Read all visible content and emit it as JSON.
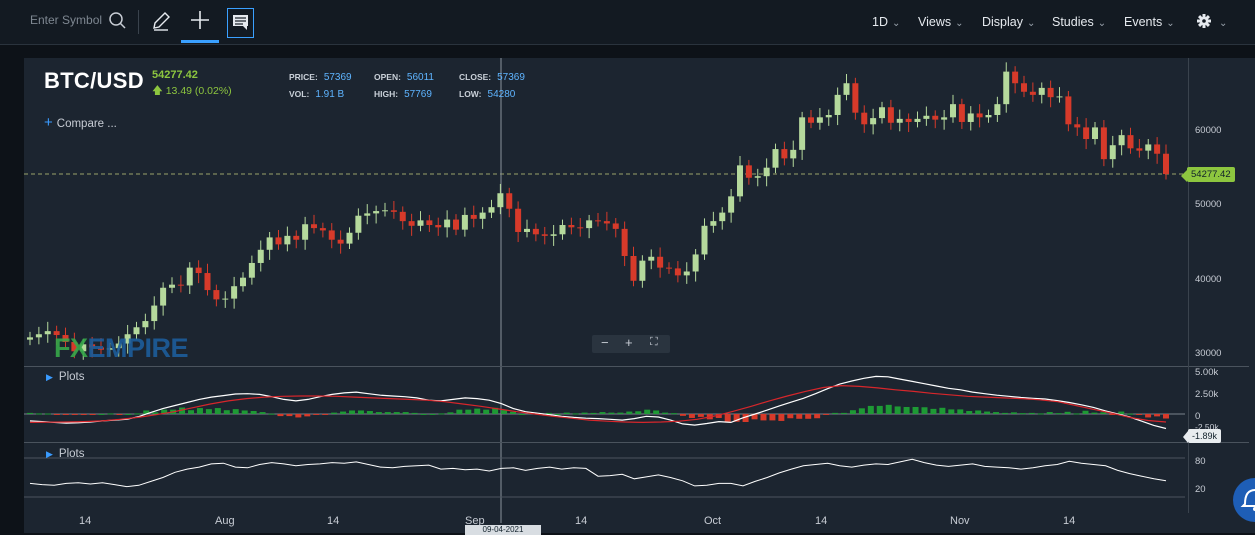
{
  "toolbar": {
    "search_placeholder": "Enter Symbol",
    "menus": [
      "1D",
      "Views",
      "Display",
      "Studies",
      "Events"
    ]
  },
  "header": {
    "symbol": "BTC/USD",
    "last_price": "54277.42",
    "change": "13.49 (0.02%)",
    "price_label": "PRICE:",
    "price": "57369",
    "open_label": "OPEN:",
    "open": "56011",
    "close_label": "CLOSE:",
    "close": "57369",
    "vol_label": "VOL:",
    "vol": "1.91 B",
    "high_label": "HIGH:",
    "high": "57769",
    "low_label": "LOW:",
    "low": "54280",
    "compare_label": "Compare ..."
  },
  "watermark": {
    "fx": "FX",
    "rest": "EMPIRE"
  },
  "panes": {
    "plots1": "Plots",
    "plots2": "Plots"
  },
  "tags": {
    "price": "54277.42",
    "osc": "-1.89k",
    "crosshair_date": "09-04-2021"
  },
  "colors": {
    "up": "#b5d99c",
    "down": "#d73a2a",
    "accent": "#3a9bff",
    "signal": "#d7262b",
    "bull_hist": "#1e9a35"
  },
  "chart_data": {
    "type": "candlestick",
    "symbol": "BTC/USD",
    "price_axis": {
      "ticks": [
        30000,
        40000,
        50000,
        60000
      ],
      "labels": [
        "30000",
        "40000",
        "50000",
        "60000"
      ],
      "range": [
        29500,
        69000
      ]
    },
    "x_axis": {
      "labels": [
        "14",
        "Aug",
        "14",
        "Sep",
        "14",
        "Oct",
        "14",
        "Nov",
        "14"
      ]
    },
    "osc_axis": {
      "labels": [
        "5.00k",
        "2.50k",
        "0",
        "-2.50k"
      ],
      "values": [
        5000,
        2500,
        0,
        -2500
      ],
      "range": [
        -3400,
        6000
      ]
    },
    "rsi_axis": {
      "labels": [
        "80",
        "20"
      ],
      "values": [
        80,
        20
      ],
      "range": [
        0,
        100
      ]
    },
    "close_series": [
      33200,
      33600,
      34000,
      33500,
      32600,
      31400,
      32300,
      31900,
      31600,
      31800,
      32400,
      33600,
      34500,
      35300,
      37300,
      39600,
      40000,
      39900,
      42200,
      41500,
      39300,
      38100,
      38200,
      39800,
      40900,
      42800,
      44500,
      46100,
      45200,
      46300,
      45800,
      47800,
      47300,
      47000,
      45800,
      45300,
      46700,
      48900,
      49200,
      49500,
      49600,
      49400,
      48200,
      47600,
      48300,
      47700,
      47400,
      48400,
      47100,
      49000,
      48500,
      49300,
      50000,
      51800,
      49800,
      46800,
      47200,
      46500,
      46300,
      46500,
      47700,
      47400,
      47300,
      48300,
      48200,
      47900,
      47200,
      43700,
      40500,
      43100,
      43600,
      42200,
      42100,
      41200,
      41700,
      43900,
      47600,
      48200,
      49300,
      51400,
      55400,
      53800,
      54000,
      55100,
      57500,
      56300,
      57400,
      61600,
      60900,
      61600,
      61900,
      64500,
      66000,
      62200,
      60700,
      61500,
      62900,
      60900,
      61400,
      61000,
      61400,
      61800,
      61300,
      61600,
      63300,
      61000,
      62100,
      61600,
      61900,
      63300,
      67500,
      66000,
      64900,
      64500,
      65400,
      64200,
      64300,
      60700,
      60300,
      58800,
      60300,
      56200,
      58000,
      59300,
      57600,
      57300,
      58100,
      56900,
      54277
    ],
    "oscillator_line": [
      -900,
      -1000,
      -1100,
      -1200,
      -1150,
      -1050,
      -900,
      -800,
      -700,
      -350,
      200,
      700,
      1100,
      1500,
      1900,
      2200,
      2400,
      2600,
      2650,
      2550,
      2250,
      1900,
      1700,
      1900,
      2250,
      2550,
      2750,
      2850,
      2650,
      2450,
      2350,
      2250,
      2100,
      1800,
      1700,
      1900,
      2100,
      2000,
      1800,
      1350,
      700,
      300,
      100,
      -100,
      -300,
      -450,
      -550,
      -600,
      -700,
      -800,
      -600,
      -300,
      -400,
      -800,
      -1300,
      -1450,
      -1250,
      -1000,
      -1100,
      -500,
      0,
      500,
      1050,
      1550,
      2050,
      2650,
      3300,
      3900,
      4300,
      4650,
      4900,
      4850,
      4550,
      4250,
      3950,
      3650,
      3350,
      3150,
      2850,
      2650,
      2450,
      2300,
      2150,
      2050,
      1950,
      1750,
      1500,
      1200,
      850,
      400,
      0,
      -400,
      -950,
      -1500,
      -1900
    ],
    "signal_line": [
      -1100,
      -1080,
      -1050,
      -1000,
      -900,
      -700,
      -450,
      -100,
      300,
      800,
      1300,
      1700,
      2000,
      2200,
      2300,
      2350,
      2350,
      2300,
      2200,
      2100,
      2000,
      1900,
      1800,
      1600,
      1300,
      1000,
      650,
      300,
      0,
      -300,
      -550,
      -800,
      -950,
      -1050,
      -1100,
      -1050,
      -950,
      -700,
      -250,
      350,
      1000,
      1700,
      2350,
      2950,
      3450,
      3700,
      3600,
      3400,
      3150,
      2950,
      2700,
      2500,
      2300,
      2200,
      2100,
      2000,
      1850,
      1600,
      1100,
      600,
      100,
      -450,
      -850,
      -1050
    ],
    "rsi_line": [
      41,
      39,
      38,
      41,
      42,
      40,
      42,
      39,
      36,
      38,
      44,
      50,
      58,
      63,
      66,
      71,
      72,
      66,
      65,
      70,
      73,
      71,
      68,
      70,
      71,
      73,
      72,
      74,
      70,
      66,
      65,
      67,
      68,
      69,
      63,
      64,
      62,
      63,
      60,
      64,
      65,
      61,
      64,
      66,
      63,
      65,
      64,
      52,
      53,
      55,
      48,
      51,
      54,
      50,
      45,
      37,
      38,
      41,
      41,
      37,
      44,
      50,
      57,
      63,
      68,
      70,
      72,
      68,
      66,
      69,
      71,
      70,
      74,
      78,
      73,
      69,
      67,
      69,
      71,
      67,
      66,
      65,
      63,
      65,
      68,
      70,
      75,
      72,
      70,
      68,
      61,
      56,
      52,
      48,
      45
    ]
  }
}
